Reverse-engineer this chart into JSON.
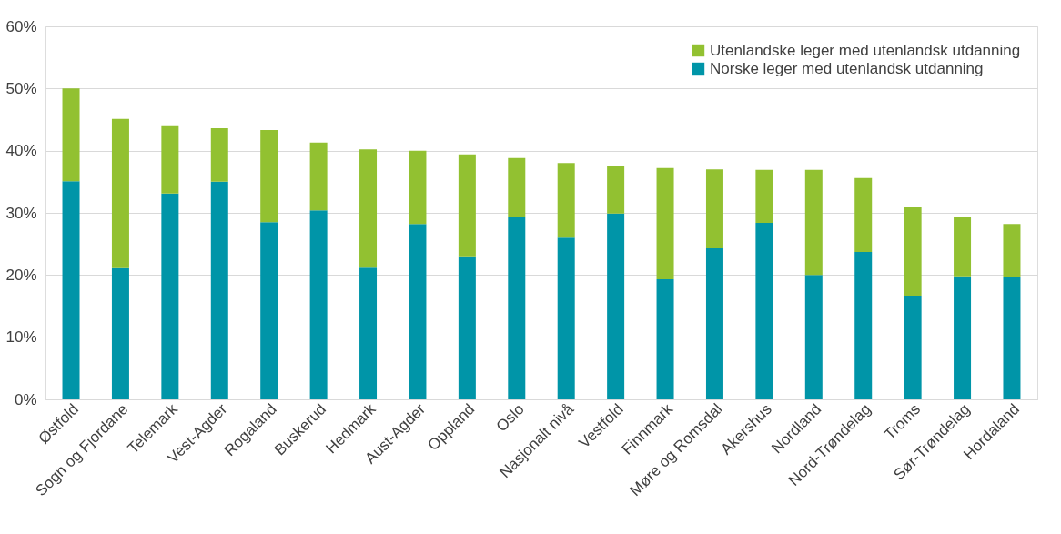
{
  "chart_data": {
    "type": "bar",
    "stacked": true,
    "categories": [
      "Østfold",
      "Sogn og Fjordane",
      "Telemark",
      "Vest-Agder",
      "Rogaland",
      "Buskerud",
      "Hedmark",
      "Aust-Agder",
      "Oppland",
      "Oslo",
      "Nasjonalt nivå",
      "Vestfold",
      "Finnmark",
      "Møre og Romsdal",
      "Akershus",
      "Nordland",
      "Nord-Trøndelag",
      "Troms",
      "Sør-Trøndelag",
      "Hordaland"
    ],
    "series": [
      {
        "name": "Norske leger med utenlandsk utdanning",
        "color": "#0095a8",
        "values": [
          35.1,
          21.1,
          33.1,
          35.0,
          28.5,
          30.4,
          21.2,
          28.2,
          23.0,
          29.4,
          26.0,
          29.9,
          19.3,
          24.3,
          28.4,
          20.0,
          23.7,
          16.7,
          19.8,
          19.6
        ]
      },
      {
        "name": "Utenlandske leger med utenlandsk utdanning",
        "color": "#92c131",
        "values": [
          14.9,
          24.0,
          11.0,
          8.6,
          14.8,
          10.9,
          19.0,
          11.8,
          16.4,
          9.4,
          12.0,
          7.6,
          17.9,
          12.7,
          8.5,
          16.9,
          11.9,
          14.2,
          9.5,
          8.6
        ]
      }
    ],
    "ylim": [
      0,
      60
    ],
    "yticks": [
      {
        "value": 0,
        "label": "0%"
      },
      {
        "value": 10,
        "label": "10%"
      },
      {
        "value": 20,
        "label": "20%"
      },
      {
        "value": 30,
        "label": "30%"
      },
      {
        "value": 40,
        "label": "40%"
      },
      {
        "value": 50,
        "label": "50%"
      },
      {
        "value": 60,
        "label": "60%"
      }
    ],
    "grid": "y",
    "legend": "top right"
  }
}
